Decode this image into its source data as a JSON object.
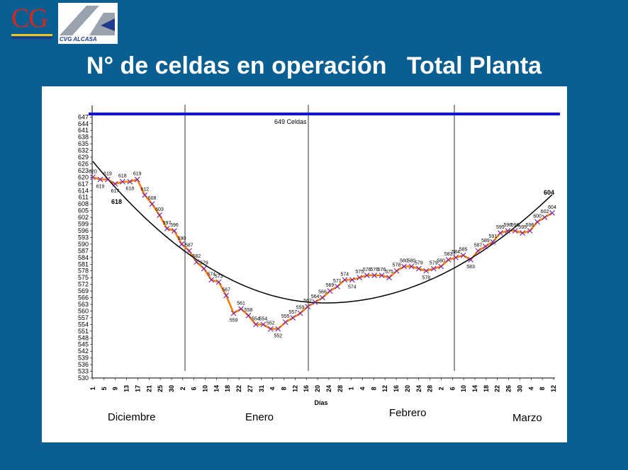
{
  "header": {
    "title": "N° de celdas en operación   Total Planta",
    "logo_cg_text": "CG",
    "logo_alcasa_text": "CVG ALCASA"
  },
  "colors": {
    "background": "#0a5f92",
    "capacity_line": "#1010ee",
    "series_line": "#ff7a00",
    "series_marker": "#7a2fb0",
    "trend_line": "#000000"
  },
  "chart_data": {
    "type": "line",
    "title": "",
    "xlabel": "Días",
    "ylabel": "",
    "ylim": [
      530,
      649
    ],
    "yticks": [
      530,
      533,
      536,
      539,
      542,
      545,
      548,
      551,
      554,
      557,
      560,
      563,
      566,
      569,
      572,
      575,
      578,
      581,
      584,
      587,
      590,
      593,
      596,
      599,
      602,
      605,
      608,
      611,
      614,
      617,
      620,
      623,
      626,
      629,
      632,
      635,
      638,
      641,
      644,
      647
    ],
    "capacity": {
      "value": 649,
      "label": "649 Celdas"
    },
    "months": [
      "Diciembre",
      "Enero",
      "Febrero",
      "Marzo"
    ],
    "xticks": [
      "1",
      "5",
      "9",
      "13",
      "17",
      "21",
      "25",
      "30",
      "2",
      "6",
      "10",
      "14",
      "18",
      "22",
      "27",
      "31",
      "4",
      "8",
      "12",
      "16",
      "20",
      "24",
      "28",
      "1",
      "4",
      "8",
      "12",
      "16",
      "20",
      "24",
      "28",
      "2",
      "6",
      "10",
      "14",
      "18",
      "22",
      "26",
      "30",
      "4",
      "8",
      "12"
    ],
    "series": [
      {
        "values": [
          620,
          619,
          619,
          617,
          618,
          618,
          619,
          612,
          608,
          603,
          597,
          596,
          590,
          587,
          582,
          579,
          574,
          573,
          567,
          559,
          561,
          558,
          554,
          554,
          552,
          552,
          555,
          557,
          559,
          562,
          564,
          566,
          569,
          571,
          574,
          574,
          575,
          576,
          576,
          576,
          575,
          578,
          580,
          580,
          579,
          578,
          579,
          580,
          583,
          584,
          585,
          583,
          587,
          589,
          591,
          595,
          596,
          596,
          595,
          596,
          600,
          602,
          604
        ]
      }
    ],
    "data_labels": [
      "620",
      "619",
      "619",
      "617",
      "618",
      "618",
      "619",
      "612",
      "608",
      "603",
      "597",
      "596",
      "590",
      "587",
      "582",
      "579",
      "574",
      "573",
      "567",
      "559",
      "561",
      "558",
      "554",
      "554",
      "552",
      "552",
      "555",
      "557",
      "559",
      "562",
      "564",
      "566",
      "569",
      "571",
      "574",
      "574",
      "575",
      "576",
      "576",
      "576",
      "575",
      "578",
      "580",
      "580",
      "579",
      "578",
      "579",
      "580",
      "583",
      "584",
      "585",
      "583",
      "587",
      "589",
      "591",
      "595",
      "596",
      "596",
      "595",
      "596",
      "600",
      "602",
      "604"
    ],
    "trend": {
      "type": "polynomial",
      "start_label": "618",
      "end_label": "604"
    }
  }
}
